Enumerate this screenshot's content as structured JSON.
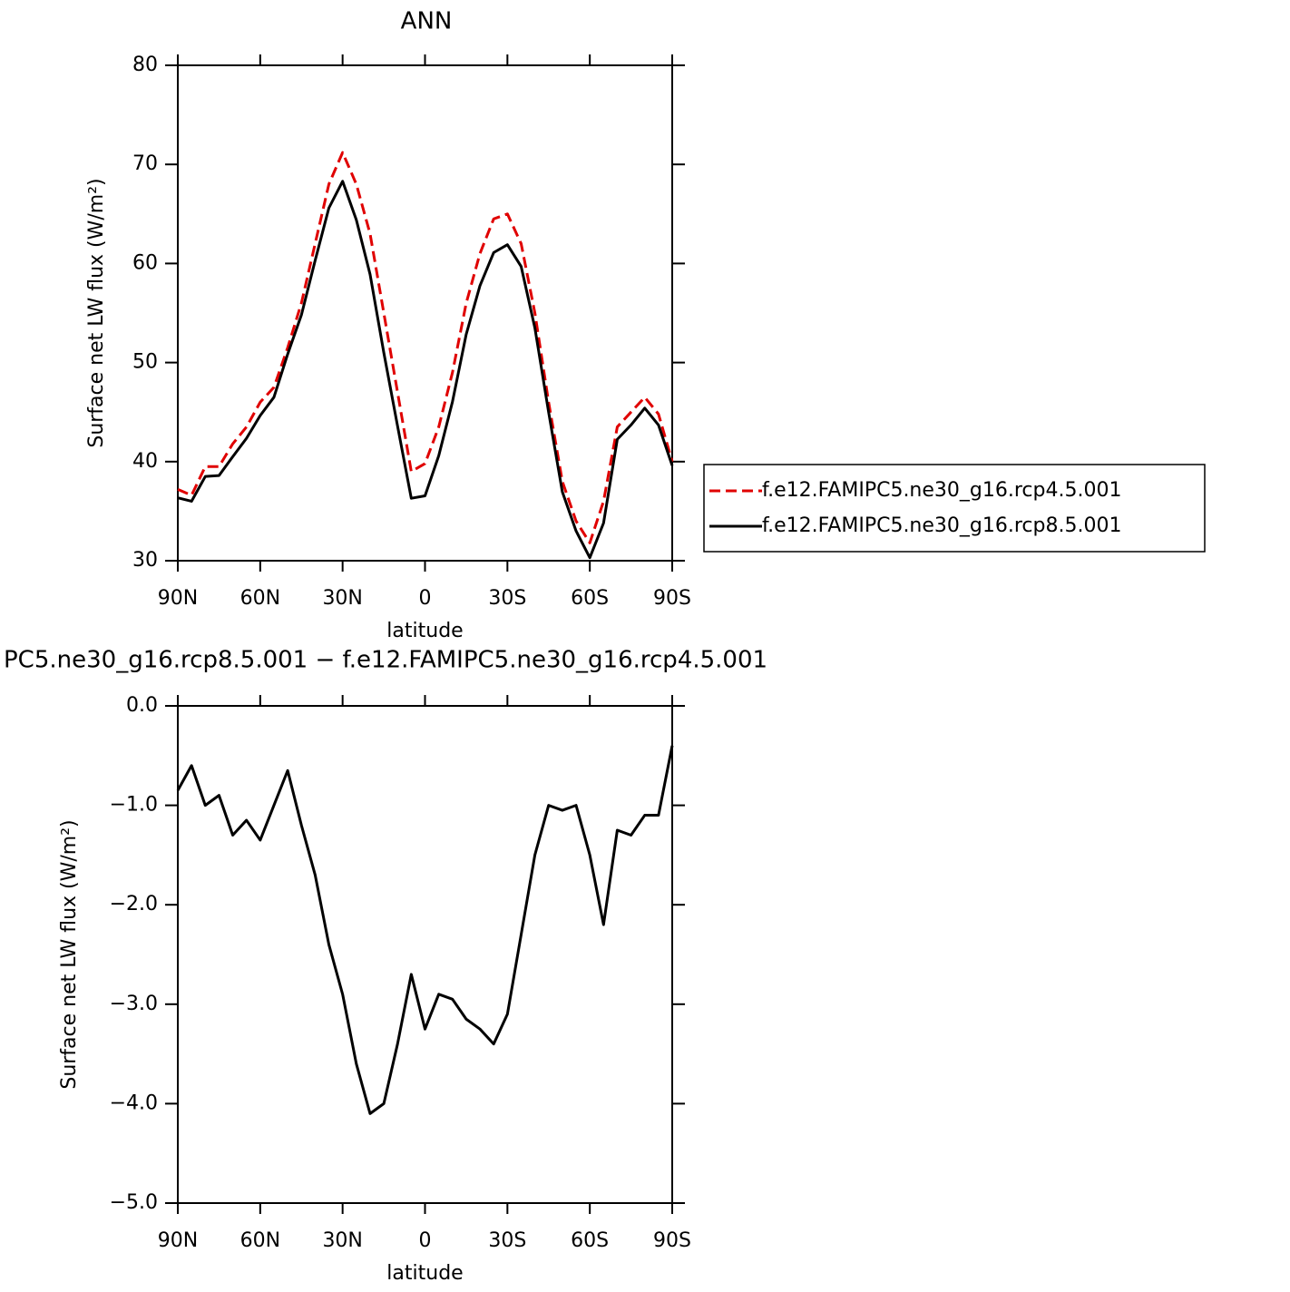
{
  "chart_data": [
    {
      "type": "line",
      "title": "ANN",
      "x_label": "latitude",
      "y_label": "Surface net LW flux (W/m²)",
      "x": [
        90,
        85,
        80,
        75,
        70,
        65,
        60,
        55,
        50,
        45,
        40,
        35,
        30,
        25,
        20,
        15,
        10,
        5,
        0,
        -5,
        -10,
        -15,
        -20,
        -25,
        -30,
        -35,
        -40,
        -45,
        -50,
        -55,
        -60,
        -65,
        -70,
        -75,
        -80,
        -85,
        -90
      ],
      "series": [
        {
          "name": "f.e12.FAMIPC5.ne30_g16.rcp4.5.001",
          "color": "#e00000",
          "line_style": "dashed",
          "values": [
            37.2,
            36.6,
            39.5,
            39.5,
            41.8,
            43.5,
            46,
            47.5,
            51.5,
            56,
            62,
            68,
            71.2,
            68,
            63,
            55,
            47,
            39,
            39.8,
            43.5,
            49,
            56,
            61,
            64.5,
            65,
            62,
            55,
            46,
            38,
            34,
            31.8,
            36,
            43.5,
            45,
            46.5,
            44.8,
            40
          ]
        },
        {
          "name": "f.e12.FAMIPC5.ne30_g16.rcp8.5.001",
          "color": "#000000",
          "line_style": "solid",
          "values": [
            36.35,
            36,
            38.5,
            38.6,
            40.5,
            42.35,
            44.65,
            46.5,
            50.85,
            54.8,
            60.3,
            65.6,
            68.3,
            64.4,
            58.9,
            51,
            43.6,
            36.3,
            36.55,
            40.6,
            46.05,
            52.85,
            57.75,
            61.1,
            61.9,
            59.7,
            53.5,
            45,
            36.95,
            33,
            30.3,
            33.8,
            42.25,
            43.7,
            45.4,
            43.7,
            39.6
          ]
        }
      ],
      "xlim": [
        90,
        -90
      ],
      "xticks": [
        {
          "value": 90,
          "label": "90N"
        },
        {
          "value": 60,
          "label": "60N"
        },
        {
          "value": 30,
          "label": "30N"
        },
        0,
        {
          "value": -30,
          "label": "30S"
        },
        {
          "value": -60,
          "label": "60S"
        },
        {
          "value": -90,
          "label": "90S"
        }
      ],
      "ylim": [
        30,
        80
      ],
      "yticks": [
        30,
        40,
        50,
        60,
        70,
        80
      ],
      "legend": "right"
    },
    {
      "type": "line",
      "title": "PC5.ne30_g16.rcp8.5.001 − f.e12.FAMIPC5.ne30_g16.rcp4.5.001",
      "x_label": "latitude",
      "y_label": "Surface net LW flux (W/m²)",
      "x": [
        90,
        85,
        80,
        75,
        70,
        65,
        60,
        55,
        50,
        45,
        40,
        35,
        30,
        25,
        20,
        15,
        10,
        5,
        0,
        -5,
        -10,
        -15,
        -20,
        -25,
        -30,
        -35,
        -40,
        -45,
        -50,
        -55,
        -60,
        -65,
        -70,
        -75,
        -80,
        -85,
        -90
      ],
      "series": [
        {
          "color": "#000000",
          "line_style": "solid",
          "values": [
            -0.85,
            -0.6,
            -1.0,
            -0.9,
            -1.3,
            -1.15,
            -1.35,
            -1.0,
            -0.65,
            -1.2,
            -1.7,
            -2.4,
            -2.9,
            -3.6,
            -4.1,
            -4.0,
            -3.4,
            -2.7,
            -3.25,
            -2.9,
            -2.95,
            -3.15,
            -3.25,
            -3.4,
            -3.1,
            -2.3,
            -1.5,
            -1.0,
            -1.05,
            -1.0,
            -1.5,
            -2.2,
            -1.25,
            -1.3,
            -1.1,
            -1.1,
            -0.4
          ]
        }
      ],
      "xlim": [
        90,
        -90
      ],
      "xticks": [
        {
          "value": 90,
          "label": "90N"
        },
        {
          "value": 60,
          "label": "60N"
        },
        {
          "value": 30,
          "label": "30N"
        },
        0,
        {
          "value": -30,
          "label": "30S"
        },
        {
          "value": -60,
          "label": "60S"
        },
        {
          "value": -90,
          "label": "90S"
        }
      ],
      "ylim": [
        -5,
        0
      ],
      "yticks": [
        {
          "value": -5,
          "label": "−5.0"
        },
        {
          "value": -4,
          "label": "−4.0"
        },
        {
          "value": -3,
          "label": "−3.0"
        },
        {
          "value": -2,
          "label": "−2.0"
        },
        {
          "value": -1,
          "label": "−1.0"
        },
        {
          "value": 0,
          "label": "0.0"
        }
      ]
    }
  ]
}
